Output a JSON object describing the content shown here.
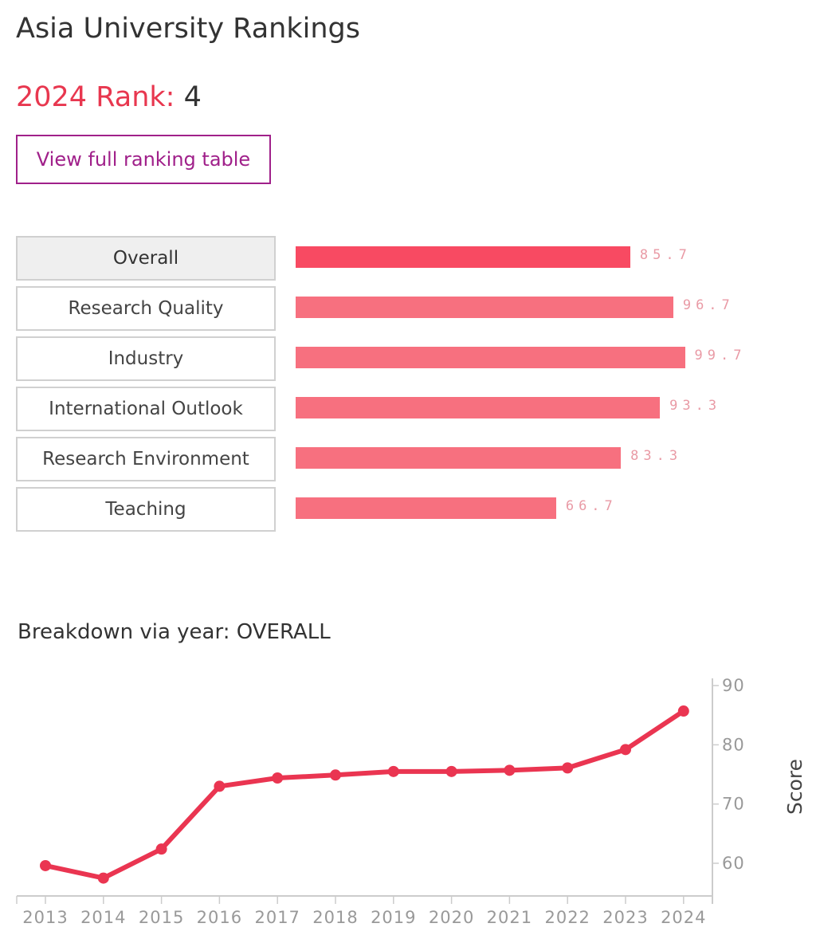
{
  "title": "Asia University Rankings",
  "rank": {
    "label": "2024 Rank:",
    "value": "4"
  },
  "view_button": "View full ranking table",
  "categories": [
    {
      "label": "Overall",
      "value": 85.7,
      "display": "85.7",
      "active": true
    },
    {
      "label": "Research Quality",
      "value": 96.7,
      "display": "96.7",
      "active": false
    },
    {
      "label": "Industry",
      "value": 99.7,
      "display": "99.7",
      "active": false
    },
    {
      "label": "International Outlook",
      "value": 93.3,
      "display": "93.3",
      "active": false
    },
    {
      "label": "Research Environment",
      "value": 83.3,
      "display": "83.3",
      "active": false
    },
    {
      "label": "Teaching",
      "value": 66.7,
      "display": "66.7",
      "active": false
    }
  ],
  "breakdown_title": "Breakdown via year: OVERALL",
  "colors": {
    "accent": "#e8374f",
    "bar_active": "#f84a62",
    "bar": "#f7707f",
    "line": "#ea3551",
    "button": "#a0208a"
  },
  "chart_data": [
    {
      "type": "bar",
      "orientation": "horizontal",
      "categories": [
        "Overall",
        "Research Quality",
        "Industry",
        "International Outlook",
        "Research Environment",
        "Teaching"
      ],
      "values": [
        85.7,
        96.7,
        99.7,
        93.3,
        83.3,
        66.7
      ],
      "xlim": [
        0,
        100
      ]
    },
    {
      "type": "line",
      "title": "Breakdown via year: OVERALL",
      "x": [
        "2013",
        "2014",
        "2015",
        "2016",
        "2017",
        "2018",
        "2019",
        "2020",
        "2021",
        "2022",
        "2023",
        "2024"
      ],
      "y": [
        59.6,
        57.5,
        62.4,
        73.0,
        74.4,
        74.9,
        75.5,
        75.5,
        75.7,
        76.1,
        79.2,
        85.7
      ],
      "ylabel": "Score",
      "yticks": [
        60,
        70,
        80,
        90
      ],
      "ylim": [
        54.5,
        91.2
      ],
      "y_axis_side": "right",
      "grid": false
    }
  ]
}
